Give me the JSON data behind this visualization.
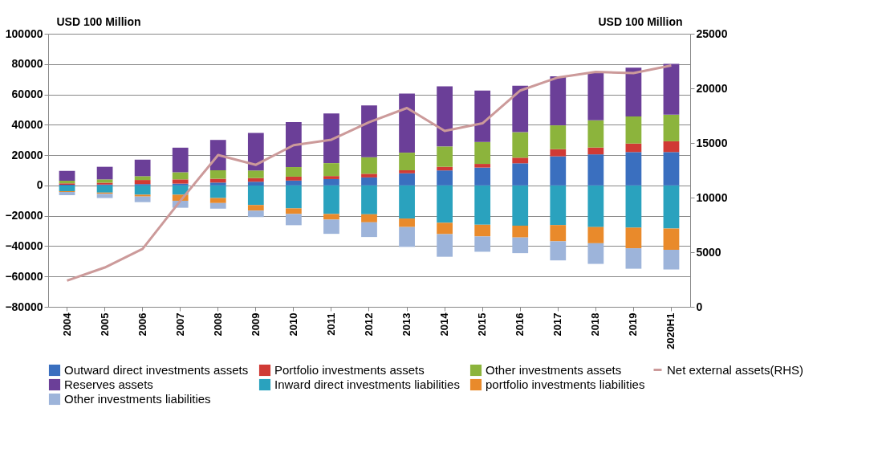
{
  "chart_data": {
    "type": "bar",
    "stacked": true,
    "ylabel": "USD 100  Million",
    "y2label": "USD 100  Million",
    "categories": [
      "2004",
      "2005",
      "2006",
      "2007",
      "2008",
      "2009",
      "2010",
      "2011",
      "2012",
      "2013",
      "2014",
      "2015",
      "2016",
      "2017",
      "2018",
      "2019",
      "2020H1"
    ],
    "series": [
      {
        "name": "Outward direct investments assets",
        "color": "#3a6fbf",
        "values": [
          500,
          600,
          900,
          1200,
          1900,
          2500,
          3200,
          4200,
          5300,
          8000,
          9900,
          11800,
          14600,
          19200,
          20500,
          22000,
          22000
        ]
      },
      {
        "name": "Portfolio investments assets",
        "color": "#d03a35",
        "values": [
          900,
          1200,
          2700,
          2800,
          2500,
          2400,
          2600,
          2000,
          2400,
          2000,
          2400,
          2400,
          3700,
          4700,
          4500,
          5600,
          7100
        ]
      },
      {
        "name": "Other investments assets",
        "color": "#8cb43c",
        "values": [
          1700,
          2200,
          2500,
          4700,
          5600,
          5000,
          6300,
          8500,
          10900,
          11600,
          13400,
          14500,
          16800,
          15700,
          17900,
          17900,
          17500
        ]
      },
      {
        "name": "Reserves assets",
        "color": "#6b3f98",
        "values": [
          6500,
          8300,
          10900,
          16200,
          20000,
          24700,
          29700,
          32800,
          34200,
          39000,
          39600,
          33800,
          30600,
          32400,
          31400,
          32100,
          33600
        ]
      },
      {
        "name": "Inward direct investments liabilities",
        "color": "#2aa2be",
        "values": [
          -3700,
          -4700,
          -6100,
          -6100,
          -8300,
          -12900,
          -15100,
          -18800,
          -19000,
          -21800,
          -24600,
          -25900,
          -26500,
          -26100,
          -27400,
          -27800,
          -28400
        ]
      },
      {
        "name": "portfolio investments liabilities",
        "color": "#e98a2b",
        "values": [
          -600,
          -800,
          -1200,
          -4000,
          -3300,
          -3700,
          -3700,
          -3700,
          -5300,
          -5600,
          -7500,
          -7700,
          -7800,
          -10700,
          -10700,
          -13600,
          -14000
        ]
      },
      {
        "name": "Other investments liabilities",
        "color": "#9db4da",
        "values": [
          -2100,
          -2800,
          -3700,
          -4600,
          -3700,
          -4200,
          -7400,
          -9400,
          -9700,
          -13100,
          -14900,
          -10100,
          -10300,
          -12600,
          -13600,
          -13500,
          -13000
        ]
      },
      {
        "name": "Net external assets(RHS)",
        "type": "line",
        "axis": "y2",
        "color": "#cc9a9a",
        "values": [
          2400,
          3600,
          5300,
          9700,
          13900,
          13000,
          14800,
          15300,
          16900,
          18200,
          16100,
          16800,
          19800,
          21000,
          21500,
          21400,
          22100
        ]
      }
    ],
    "ylim": [
      -80000,
      100000
    ],
    "yticks": [
      -80000,
      -60000,
      -40000,
      -20000,
      0,
      20000,
      40000,
      60000,
      80000,
      100000
    ],
    "y2lim": [
      0,
      25000
    ],
    "y2ticks": [
      0,
      5000,
      10000,
      15000,
      20000,
      25000
    ],
    "grid": "y",
    "legend": "bottom",
    "marker": "none",
    "line_style": "solid"
  }
}
